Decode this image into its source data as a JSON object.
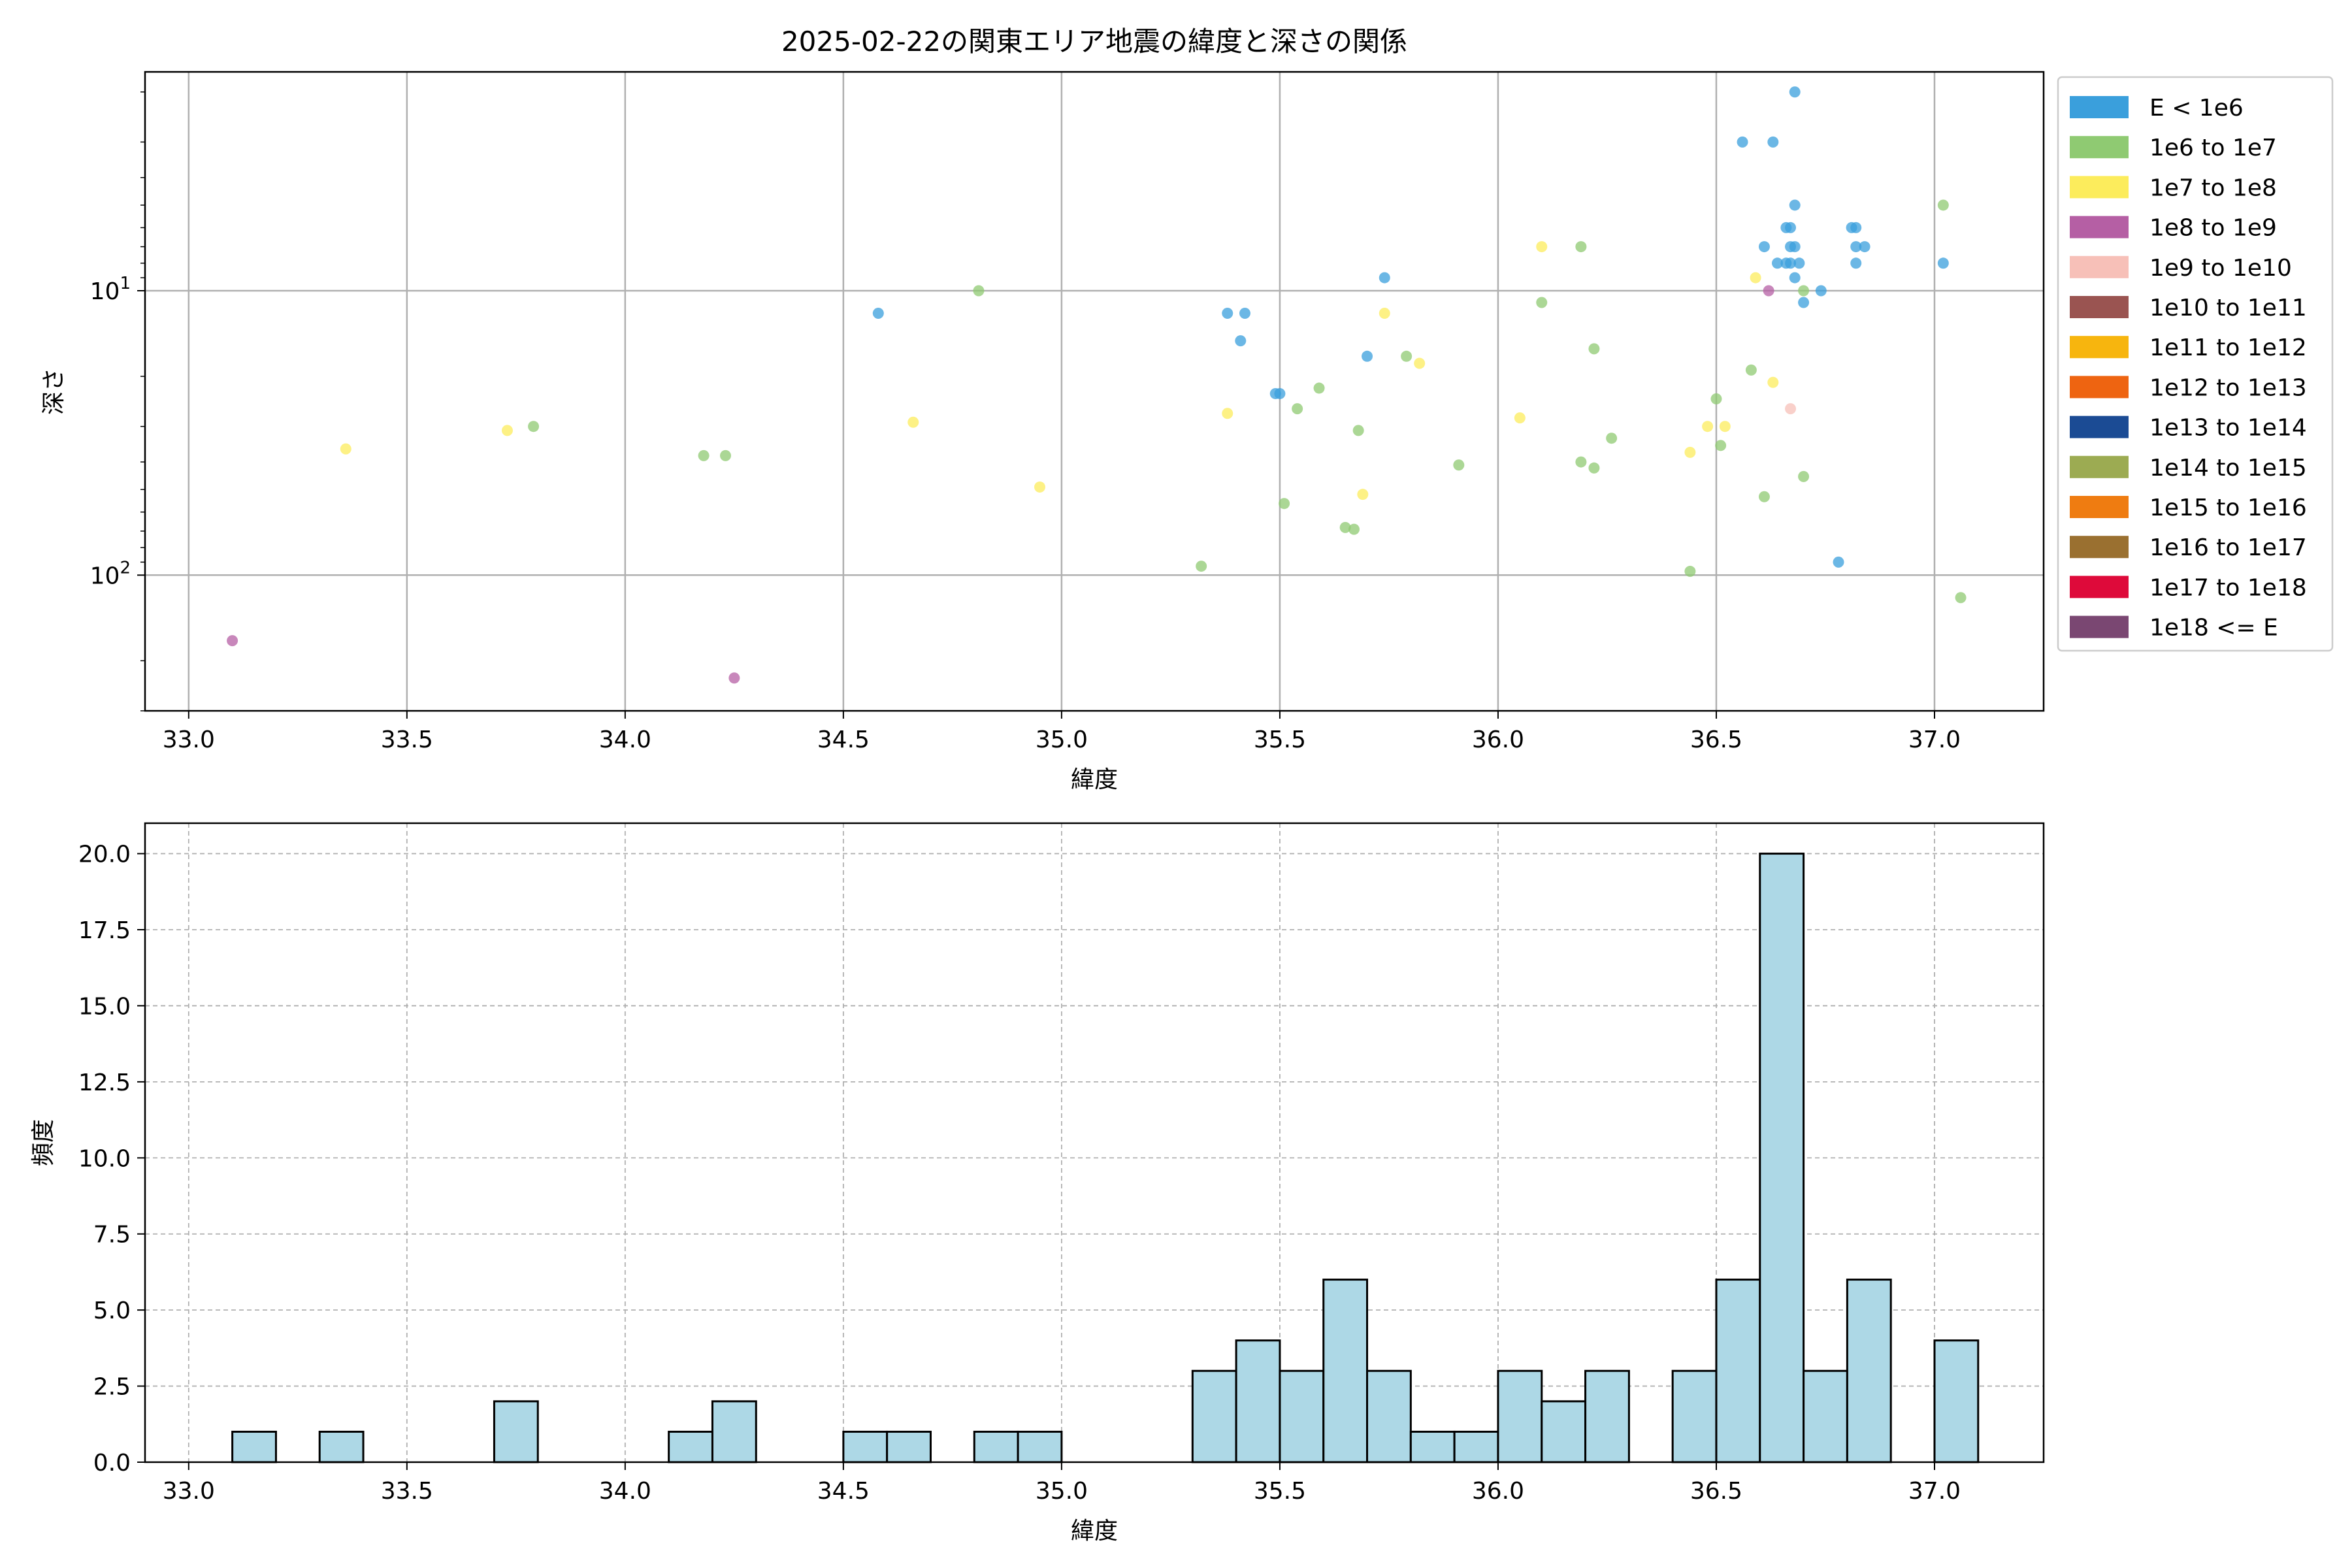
{
  "title": "2025-02-22の関東エリア地震の緯度と深さの関係",
  "scatter": {
    "xlabel": "緯度",
    "ylabel": "深さ",
    "xlim": [
      32.9,
      37.25
    ],
    "ylim": [
      300,
      1.7
    ],
    "y_scale": "log",
    "y_inverted": true,
    "grid": true,
    "x_ticks": [
      {
        "value": 33.0,
        "label": "33.0"
      },
      {
        "value": 33.5,
        "label": "33.5"
      },
      {
        "value": 34.0,
        "label": "34.0"
      },
      {
        "value": 34.5,
        "label": "34.5"
      },
      {
        "value": 35.0,
        "label": "35.0"
      },
      {
        "value": 35.5,
        "label": "35.5"
      },
      {
        "value": 36.0,
        "label": "36.0"
      },
      {
        "value": 36.5,
        "label": "36.5"
      },
      {
        "value": 37.0,
        "label": "37.0"
      }
    ],
    "y_ticks": [
      {
        "value": 10,
        "base": "10",
        "exp": "1"
      },
      {
        "value": 100,
        "base": "10",
        "exp": "2"
      }
    ]
  },
  "legend": {
    "placement": "outside-right-top",
    "entries": [
      {
        "label": "E < 1e6",
        "color": "#3a9fdc"
      },
      {
        "label": "1e6 to 1e7",
        "color": "#8fca72"
      },
      {
        "label": "1e7 to 1e8",
        "color": "#fcec5c"
      },
      {
        "label": "1e8 to 1e9",
        "color": "#b55fa4"
      },
      {
        "label": "1e9 to 1e10",
        "color": "#f7c0b8"
      },
      {
        "label": "1e10 to 1e11",
        "color": "#9a5451"
      },
      {
        "label": "1e11 to 1e12",
        "color": "#f7b50e"
      },
      {
        "label": "1e12 to 1e13",
        "color": "#ee6411"
      },
      {
        "label": "1e13 to 1e14",
        "color": "#1b4b94"
      },
      {
        "label": "1e14 to 1e15",
        "color": "#9cab52"
      },
      {
        "label": "1e15 to 1e16",
        "color": "#ef7c11"
      },
      {
        "label": "1e16 to 1e17",
        "color": "#9a7030"
      },
      {
        "label": "1e17 to 1e18",
        "color": "#de0a3a"
      },
      {
        "label": "1e18 <= E",
        "color": "#7a4772"
      }
    ]
  },
  "histogram": {
    "xlabel": "緯度",
    "ylabel": "頻度",
    "xlim": [
      32.9,
      37.25
    ],
    "ylim": [
      0,
      21
    ],
    "bar_color": "#add8e6",
    "edge_color": "#000000",
    "grid": "dashed",
    "x_ticks": [
      {
        "value": 33.0,
        "label": "33.0"
      },
      {
        "value": 33.5,
        "label": "33.5"
      },
      {
        "value": 34.0,
        "label": "34.0"
      },
      {
        "value": 34.5,
        "label": "34.5"
      },
      {
        "value": 35.0,
        "label": "35.0"
      },
      {
        "value": 35.5,
        "label": "35.5"
      },
      {
        "value": 36.0,
        "label": "36.0"
      },
      {
        "value": 36.5,
        "label": "36.5"
      },
      {
        "value": 37.0,
        "label": "37.0"
      }
    ],
    "y_ticks": [
      {
        "value": 0,
        "label": "0.0"
      },
      {
        "value": 2.5,
        "label": "2.5"
      },
      {
        "value": 5,
        "label": "5.0"
      },
      {
        "value": 7.5,
        "label": "7.5"
      },
      {
        "value": 10,
        "label": "10.0"
      },
      {
        "value": 12.5,
        "label": "12.5"
      },
      {
        "value": 15,
        "label": "15.0"
      },
      {
        "value": 17.5,
        "label": "17.5"
      },
      {
        "value": 20,
        "label": "20.0"
      }
    ]
  },
  "chart_data": [
    {
      "type": "scatter",
      "title": "2025-02-22の関東エリア地震の緯度と深さの関係",
      "xlabel": "緯度",
      "ylabel": "深さ",
      "y_scale": "log",
      "y_inverted": true,
      "series": [
        {
          "name": "E < 1e6",
          "color": "#3a9fdc",
          "points": [
            [
              34.58,
              12
            ],
            [
              35.38,
              12
            ],
            [
              35.42,
              12
            ],
            [
              35.41,
              15
            ],
            [
              35.49,
              23
            ],
            [
              35.5,
              23
            ],
            [
              35.7,
              17
            ],
            [
              35.74,
              9
            ],
            [
              36.56,
              3
            ],
            [
              36.63,
              3
            ],
            [
              36.68,
              2
            ],
            [
              36.61,
              7
            ],
            [
              36.66,
              6
            ],
            [
              36.67,
              6
            ],
            [
              36.68,
              5
            ],
            [
              36.68,
              7
            ],
            [
              36.67,
              7
            ],
            [
              36.64,
              8
            ],
            [
              36.66,
              8
            ],
            [
              36.67,
              8
            ],
            [
              36.69,
              8
            ],
            [
              36.68,
              9
            ],
            [
              36.7,
              11
            ],
            [
              36.74,
              10
            ],
            [
              36.81,
              6
            ],
            [
              36.82,
              6
            ],
            [
              36.82,
              7
            ],
            [
              36.84,
              7
            ],
            [
              36.82,
              8
            ],
            [
              37.02,
              8
            ],
            [
              36.78,
              90
            ]
          ]
        },
        {
          "name": "1e6 to 1e7",
          "color": "#8fca72",
          "points": [
            [
              33.79,
              30
            ],
            [
              34.18,
              38
            ],
            [
              34.23,
              38
            ],
            [
              34.81,
              10
            ],
            [
              35.32,
              93
            ],
            [
              35.51,
              56
            ],
            [
              35.54,
              26
            ],
            [
              35.59,
              22
            ],
            [
              35.65,
              68
            ],
            [
              35.67,
              69
            ],
            [
              35.68,
              31
            ],
            [
              35.79,
              17
            ],
            [
              35.91,
              41
            ],
            [
              36.1,
              11
            ],
            [
              36.19,
              7
            ],
            [
              36.19,
              40
            ],
            [
              36.22,
              16
            ],
            [
              36.22,
              42
            ],
            [
              36.26,
              33
            ],
            [
              36.44,
              97
            ],
            [
              36.5,
              24
            ],
            [
              36.51,
              35
            ],
            [
              36.58,
              19
            ],
            [
              36.61,
              53
            ],
            [
              36.7,
              10
            ],
            [
              36.7,
              45
            ],
            [
              37.02,
              5
            ],
            [
              37.06,
              120
            ]
          ]
        },
        {
          "name": "1e7 to 1e8",
          "color": "#fcec5c",
          "points": [
            [
              33.36,
              36
            ],
            [
              33.73,
              31
            ],
            [
              34.66,
              29
            ],
            [
              34.95,
              49
            ],
            [
              35.38,
              27
            ],
            [
              35.69,
              52
            ],
            [
              35.74,
              12
            ],
            [
              35.82,
              18
            ],
            [
              36.05,
              28
            ],
            [
              36.1,
              7
            ],
            [
              36.44,
              37
            ],
            [
              36.48,
              30
            ],
            [
              36.52,
              30
            ],
            [
              36.59,
              9
            ],
            [
              36.63,
              21
            ]
          ]
        },
        {
          "name": "1e8 to 1e9",
          "color": "#b55fa4",
          "points": [
            [
              33.1,
              170
            ],
            [
              34.25,
              230
            ],
            [
              36.62,
              10
            ]
          ]
        },
        {
          "name": "1e9 to 1e10",
          "color": "#f7c0b8",
          "points": [
            [
              36.67,
              26
            ]
          ]
        }
      ]
    },
    {
      "type": "bar",
      "xlabel": "緯度",
      "ylabel": "頻度",
      "bin_width": 0.1,
      "bins": [
        {
          "start": 33.1,
          "count": 1
        },
        {
          "start": 33.3,
          "count": 1
        },
        {
          "start": 33.7,
          "count": 2
        },
        {
          "start": 34.1,
          "count": 1
        },
        {
          "start": 34.2,
          "count": 2
        },
        {
          "start": 34.5,
          "count": 1
        },
        {
          "start": 34.6,
          "count": 1
        },
        {
          "start": 34.8,
          "count": 1
        },
        {
          "start": 34.9,
          "count": 1
        },
        {
          "start": 35.3,
          "count": 3
        },
        {
          "start": 35.4,
          "count": 4
        },
        {
          "start": 35.5,
          "count": 3
        },
        {
          "start": 35.6,
          "count": 6
        },
        {
          "start": 35.7,
          "count": 3
        },
        {
          "start": 35.8,
          "count": 1
        },
        {
          "start": 35.9,
          "count": 1
        },
        {
          "start": 36.0,
          "count": 3
        },
        {
          "start": 36.1,
          "count": 2
        },
        {
          "start": 36.2,
          "count": 3
        },
        {
          "start": 36.4,
          "count": 3
        },
        {
          "start": 36.5,
          "count": 6
        },
        {
          "start": 36.6,
          "count": 20
        },
        {
          "start": 36.7,
          "count": 3
        },
        {
          "start": 36.8,
          "count": 6
        },
        {
          "start": 37.0,
          "count": 4
        }
      ]
    }
  ]
}
